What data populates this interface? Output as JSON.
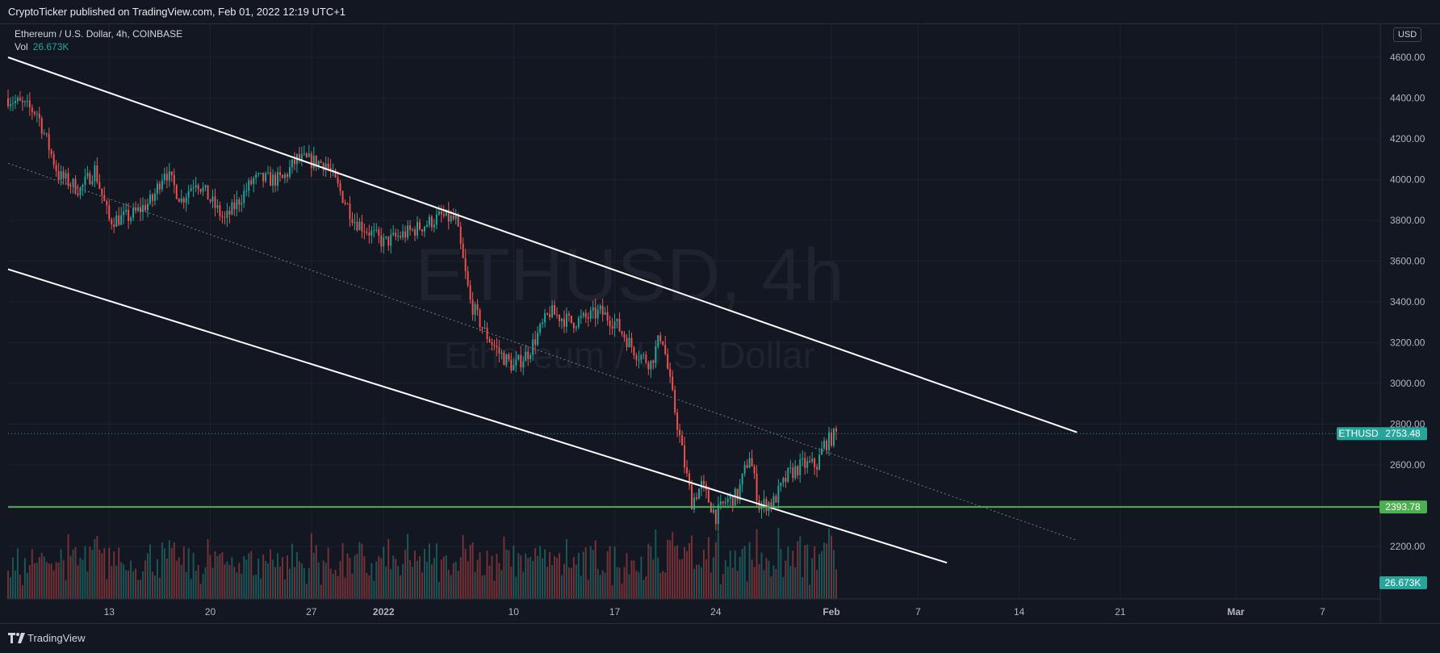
{
  "header": {
    "published": "CryptoTicker published on TradingView.com, Feb 01, 2022 12:19 UTC+1"
  },
  "legend": {
    "symbol_line": "Ethereum / U.S. Dollar, 4h, COINBASE",
    "vol_label": "Vol",
    "vol_value": "26.673K"
  },
  "watermark": {
    "line1": "ETHUSD, 4h",
    "line2": "Ethereum / U.S. Dollar"
  },
  "currency_badge": "USD",
  "footer": {
    "brand": "TradingView"
  },
  "colors": {
    "background": "#131722",
    "up": "#26a69a",
    "down": "#ef5350",
    "support": "#4caf50",
    "channel": "#ffffff",
    "last_price_tag": "#26a69a"
  },
  "chart_data": {
    "type": "candlestick",
    "symbol": "ETHUSD",
    "interval": "4h",
    "y_axis": {
      "ticks": [
        2200,
        2400,
        2600,
        2800,
        3000,
        3200,
        3400,
        3600,
        3800,
        4000,
        4200,
        4400,
        4600
      ],
      "tick_labels": [
        "2200.00",
        "2400.00",
        "2600.00",
        "2800.00",
        "3000.00",
        "3200.00",
        "3400.00",
        "3600.00",
        "3800.00",
        "4000.00",
        "4200.00",
        "4400.00",
        "4600.00"
      ],
      "range": [
        2000,
        4700
      ]
    },
    "x_axis": {
      "start": "2021-12-06T00:00",
      "end": "2022-03-11T00:00",
      "ticks": [
        {
          "label": "13",
          "date": "2021-12-13",
          "bold": false
        },
        {
          "label": "20",
          "date": "2021-12-20",
          "bold": false
        },
        {
          "label": "27",
          "date": "2021-12-27",
          "bold": false
        },
        {
          "label": "2022",
          "date": "2022-01-01",
          "bold": true
        },
        {
          "label": "10",
          "date": "2022-01-10",
          "bold": false
        },
        {
          "label": "17",
          "date": "2022-01-17",
          "bold": false
        },
        {
          "label": "24",
          "date": "2022-01-24",
          "bold": false
        },
        {
          "label": "Feb",
          "date": "2022-02-01",
          "bold": true
        },
        {
          "label": "7",
          "date": "2022-02-07",
          "bold": false
        },
        {
          "label": "14",
          "date": "2022-02-14",
          "bold": false
        },
        {
          "label": "21",
          "date": "2022-02-21",
          "bold": false
        },
        {
          "label": "Mar",
          "date": "2022-03-01",
          "bold": true
        },
        {
          "label": "7",
          "date": "2022-03-07",
          "bold": false
        }
      ]
    },
    "price_path": [
      {
        "date": "2021-12-06T00:00",
        "close": 4400
      },
      {
        "date": "2021-12-08T00:00",
        "close": 4330
      },
      {
        "date": "2021-12-09T12:00",
        "close": 4020
      },
      {
        "date": "2021-12-11T00:00",
        "close": 3950
      },
      {
        "date": "2021-12-12T00:00",
        "close": 4050
      },
      {
        "date": "2021-12-13T00:00",
        "close": 3800
      },
      {
        "date": "2021-12-14T12:00",
        "close": 3820
      },
      {
        "date": "2021-12-16T00:00",
        "close": 3900
      },
      {
        "date": "2021-12-16T20:00",
        "close": 4050
      },
      {
        "date": "2021-12-18T00:00",
        "close": 3900
      },
      {
        "date": "2021-12-19T00:00",
        "close": 4000
      },
      {
        "date": "2021-12-21T00:00",
        "close": 3800
      },
      {
        "date": "2021-12-23T00:00",
        "close": 4000
      },
      {
        "date": "2021-12-25T00:00",
        "close": 4000
      },
      {
        "date": "2021-12-26T00:00",
        "close": 4100
      },
      {
        "date": "2021-12-28T00:00",
        "close": 4080
      },
      {
        "date": "2021-12-30T00:00",
        "close": 3800
      },
      {
        "date": "2022-01-01T00:00",
        "close": 3690
      },
      {
        "date": "2022-01-03T00:00",
        "close": 3750
      },
      {
        "date": "2022-01-05T00:00",
        "close": 3820
      },
      {
        "date": "2022-01-06T00:00",
        "close": 3800
      },
      {
        "date": "2022-01-07T00:00",
        "close": 3400
      },
      {
        "date": "2022-01-08T00:00",
        "close": 3250
      },
      {
        "date": "2022-01-09T00:00",
        "close": 3150
      },
      {
        "date": "2022-01-10T00:00",
        "close": 3080
      },
      {
        "date": "2022-01-11T00:00",
        "close": 3150
      },
      {
        "date": "2022-01-12T12:00",
        "close": 3350
      },
      {
        "date": "2022-01-14T00:00",
        "close": 3300
      },
      {
        "date": "2022-01-15T00:00",
        "close": 3320
      },
      {
        "date": "2022-01-16T00:00",
        "close": 3350
      },
      {
        "date": "2022-01-17T00:00",
        "close": 3300
      },
      {
        "date": "2022-01-18T12:00",
        "close": 3150
      },
      {
        "date": "2022-01-19T12:00",
        "close": 3100
      },
      {
        "date": "2022-01-20T06:00",
        "close": 3250
      },
      {
        "date": "2022-01-20T20:00",
        "close": 3000
      },
      {
        "date": "2022-01-21T08:00",
        "close": 2800
      },
      {
        "date": "2022-01-21T20:00",
        "close": 2600
      },
      {
        "date": "2022-01-22T08:00",
        "close": 2420
      },
      {
        "date": "2022-01-23T00:00",
        "close": 2500
      },
      {
        "date": "2022-01-24T00:00",
        "close": 2350
      },
      {
        "date": "2022-01-24T16:00",
        "close": 2420
      },
      {
        "date": "2022-01-25T12:00",
        "close": 2450
      },
      {
        "date": "2022-01-26T08:00",
        "close": 2650
      },
      {
        "date": "2022-01-27T00:00",
        "close": 2400
      },
      {
        "date": "2022-01-28T00:00",
        "close": 2420
      },
      {
        "date": "2022-01-29T00:00",
        "close": 2550
      },
      {
        "date": "2022-01-30T00:00",
        "close": 2600
      },
      {
        "date": "2022-01-31T00:00",
        "close": 2600
      },
      {
        "date": "2022-01-31T12:00",
        "close": 2700
      },
      {
        "date": "2022-02-01T08:00",
        "close": 2753
      }
    ],
    "annotations": {
      "channel_upper": [
        {
          "date": "2021-12-06T00:00",
          "price": 4600
        },
        {
          "date": "2022-02-18T00:00",
          "price": 2760
        }
      ],
      "channel_lower": [
        {
          "date": "2021-12-06T00:00",
          "price": 3560
        },
        {
          "date": "2022-02-09T00:00",
          "price": 2120
        }
      ],
      "channel_mid": [
        {
          "date": "2021-12-06T00:00",
          "price": 4080
        },
        {
          "date": "2022-02-18T00:00",
          "price": 2230
        }
      ],
      "support_level": {
        "price": 2393.78,
        "label": "2393.78"
      },
      "last_price": {
        "price": 2753.48,
        "label": "2753.48",
        "symbol": "ETHUSD"
      },
      "volume_label": "26.673K"
    }
  }
}
